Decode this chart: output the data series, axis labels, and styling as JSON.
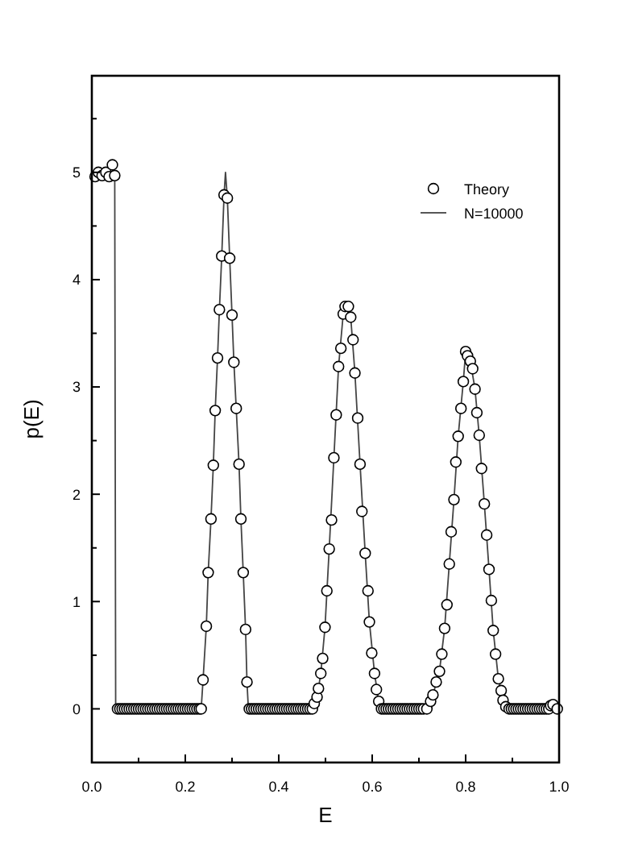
{
  "chart_data": {
    "type": "scatter",
    "xlabel": "E",
    "ylabel": "p(E)",
    "xlim": [
      0,
      1
    ],
    "ylim": [
      -0.5,
      5.9
    ],
    "xticks": [
      {
        "value": 0,
        "label": "0.0"
      },
      {
        "value": 0.1,
        "label": null
      },
      {
        "value": 0.2,
        "label": "0.2"
      },
      {
        "value": 0.3,
        "label": null
      },
      {
        "value": 0.4,
        "label": "0.4"
      },
      {
        "value": 0.5,
        "label": null
      },
      {
        "value": 0.6,
        "label": "0.6"
      },
      {
        "value": 0.7,
        "label": null
      },
      {
        "value": 0.8,
        "label": "0.8"
      },
      {
        "value": 0.9,
        "label": null
      },
      {
        "value": 1,
        "label": "1.0"
      }
    ],
    "yticks": [
      {
        "value": -0.5,
        "label": null
      },
      0,
      {
        "value": 0.5,
        "label": null
      },
      1,
      {
        "value": 1.5,
        "label": null
      },
      2,
      {
        "value": 2.5,
        "label": null
      },
      3,
      {
        "value": 3.5,
        "label": null
      },
      4,
      {
        "value": 4.5,
        "label": null
      },
      5,
      {
        "value": 5.5,
        "label": null
      }
    ],
    "grid": false,
    "legend": "top right",
    "series": [
      {
        "name": "Theory",
        "marker": "circle",
        "color": "#000000",
        "x": [
          0.007,
          0.014,
          0.022,
          0.03,
          0.037,
          0.044,
          0.049,
          0.055,
          0.06,
          0.065,
          0.07,
          0.075,
          0.08,
          0.085,
          0.09,
          0.095,
          0.1,
          0.105,
          0.11,
          0.115,
          0.12,
          0.125,
          0.13,
          0.135,
          0.14,
          0.145,
          0.15,
          0.155,
          0.16,
          0.165,
          0.17,
          0.175,
          0.18,
          0.185,
          0.19,
          0.195,
          0.2,
          0.205,
          0.21,
          0.215,
          0.22,
          0.225,
          0.23,
          0.234,
          0.238,
          0.245,
          0.249,
          0.255,
          0.26,
          0.264,
          0.269,
          0.273,
          0.278,
          0.283,
          0.29,
          0.295,
          0.3,
          0.304,
          0.309,
          0.315,
          0.319,
          0.324,
          0.329,
          0.332,
          0.337,
          0.342,
          0.347,
          0.352,
          0.357,
          0.362,
          0.367,
          0.372,
          0.377,
          0.382,
          0.387,
          0.392,
          0.397,
          0.402,
          0.407,
          0.412,
          0.417,
          0.422,
          0.427,
          0.432,
          0.437,
          0.442,
          0.447,
          0.452,
          0.457,
          0.462,
          0.467,
          0.472,
          0.476,
          0.482,
          0.485,
          0.49,
          0.494,
          0.499,
          0.503,
          0.508,
          0.513,
          0.518,
          0.523,
          0.528,
          0.533,
          0.538,
          0.542,
          0.549,
          0.554,
          0.559,
          0.563,
          0.569,
          0.574,
          0.578,
          0.585,
          0.591,
          0.594,
          0.599,
          0.605,
          0.609,
          0.614,
          0.62,
          0.625,
          0.63,
          0.635,
          0.64,
          0.645,
          0.65,
          0.655,
          0.66,
          0.665,
          0.67,
          0.675,
          0.68,
          0.685,
          0.69,
          0.695,
          0.7,
          0.705,
          0.71,
          0.717,
          0.725,
          0.73,
          0.737,
          0.744,
          0.749,
          0.755,
          0.76,
          0.765,
          0.769,
          0.775,
          0.779,
          0.784,
          0.79,
          0.795,
          0.8,
          0.804,
          0.81,
          0.815,
          0.82,
          0.824,
          0.829,
          0.834,
          0.84,
          0.845,
          0.85,
          0.855,
          0.859,
          0.864,
          0.87,
          0.876,
          0.88,
          0.886,
          0.893,
          0.898,
          0.903,
          0.908,
          0.913,
          0.918,
          0.923,
          0.928,
          0.933,
          0.938,
          0.943,
          0.948,
          0.953,
          0.958,
          0.963,
          0.968,
          0.973,
          0.978,
          0.982,
          0.987,
          0.996
        ],
        "values": [
          4.96,
          5.0,
          4.97,
          5.0,
          4.96,
          5.07,
          4.97,
          0,
          0,
          0,
          0,
          0,
          0,
          0,
          0,
          0,
          0,
          0,
          0,
          0,
          0,
          0,
          0,
          0,
          0,
          0,
          0,
          0,
          0,
          0,
          0,
          0,
          0,
          0,
          0,
          0,
          0,
          0,
          0,
          0,
          0,
          0,
          0,
          0,
          0.27,
          0.77,
          1.27,
          1.77,
          2.27,
          2.78,
          3.27,
          3.72,
          4.22,
          4.79,
          4.76,
          4.2,
          3.67,
          3.23,
          2.8,
          2.28,
          1.77,
          1.27,
          0.74,
          0.25,
          0,
          0,
          0,
          0,
          0,
          0,
          0,
          0,
          0,
          0,
          0,
          0,
          0,
          0,
          0,
          0,
          0,
          0,
          0,
          0,
          0,
          0,
          0,
          0,
          0,
          0,
          0,
          0,
          0.05,
          0.11,
          0.19,
          0.33,
          0.47,
          0.76,
          1.1,
          1.49,
          1.76,
          2.34,
          2.74,
          3.19,
          3.36,
          3.68,
          3.75,
          3.75,
          3.65,
          3.44,
          3.13,
          2.71,
          2.28,
          1.84,
          1.45,
          1.1,
          0.81,
          0.52,
          0.33,
          0.18,
          0.07,
          0,
          0,
          0,
          0,
          0,
          0,
          0,
          0,
          0,
          0,
          0,
          0,
          0,
          0,
          0,
          0,
          0,
          0,
          0,
          0,
          0.07,
          0.13,
          0.25,
          0.35,
          0.51,
          0.75,
          0.97,
          1.35,
          1.65,
          1.95,
          2.3,
          2.54,
          2.8,
          3.05,
          3.33,
          3.29,
          3.24,
          3.17,
          2.98,
          2.76,
          2.55,
          2.24,
          1.91,
          1.62,
          1.3,
          1.01,
          0.73,
          0.51,
          0.28,
          0.17,
          0.08,
          0.02,
          0,
          0,
          0,
          0,
          0,
          0,
          0,
          0,
          0,
          0,
          0,
          0,
          0,
          0,
          0,
          0,
          0,
          0,
          0.03,
          0.04,
          0
        ]
      },
      {
        "name": "N=10000",
        "type": "line",
        "marker": "none",
        "line_style": "solid",
        "color": "#444444",
        "x": [
          0.007,
          0.049,
          0.051,
          0.234,
          0.238,
          0.245,
          0.249,
          0.255,
          0.26,
          0.264,
          0.269,
          0.273,
          0.278,
          0.283,
          0.286,
          0.29,
          0.295,
          0.3,
          0.304,
          0.309,
          0.315,
          0.319,
          0.324,
          0.329,
          0.332,
          0.335,
          0.476,
          0.482,
          0.49,
          0.499,
          0.508,
          0.518,
          0.528,
          0.538,
          0.545,
          0.554,
          0.563,
          0.574,
          0.585,
          0.594,
          0.605,
          0.614,
          0.62,
          0.717,
          0.73,
          0.744,
          0.755,
          0.765,
          0.775,
          0.784,
          0.795,
          0.8,
          0.81,
          0.82,
          0.829,
          0.84,
          0.85,
          0.859,
          0.87,
          0.88,
          0.893,
          0.978,
          0.987,
          0.996
        ],
        "values": [
          4.97,
          4.97,
          0,
          0,
          0.27,
          0.77,
          1.27,
          1.77,
          2.27,
          2.78,
          3.27,
          3.72,
          4.22,
          4.79,
          5.0,
          4.76,
          4.2,
          3.67,
          3.23,
          2.8,
          2.28,
          1.77,
          1.27,
          0.74,
          0.25,
          0,
          0,
          0.11,
          0.33,
          0.76,
          1.49,
          2.34,
          3.19,
          3.68,
          3.76,
          3.65,
          3.13,
          2.28,
          1.45,
          0.81,
          0.33,
          0.07,
          0,
          0,
          0.13,
          0.35,
          0.75,
          1.35,
          1.95,
          2.54,
          3.05,
          3.33,
          3.24,
          2.98,
          2.55,
          1.91,
          1.3,
          0.73,
          0.28,
          0.08,
          0,
          0,
          0.04,
          0
        ]
      }
    ]
  }
}
